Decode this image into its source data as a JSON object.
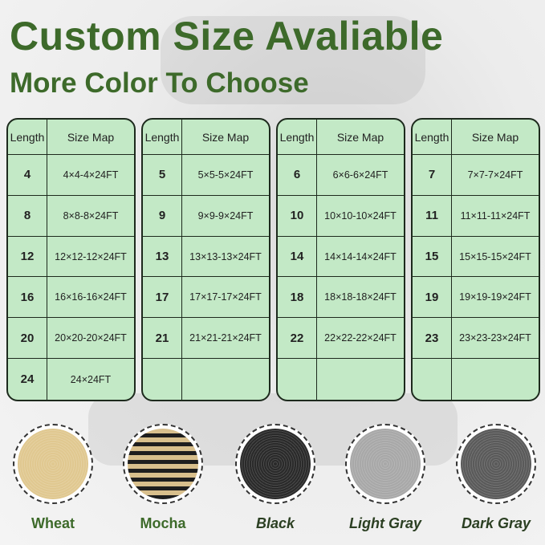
{
  "title": "Custom Size Avaliable",
  "subtitle": "More Color To Choose",
  "table_headers": {
    "length": "Length",
    "size_map": "Size Map"
  },
  "tables": [
    {
      "rows": [
        {
          "length": "4",
          "size": "4×4-4×24FT"
        },
        {
          "length": "8",
          "size": "8×8-8×24FT"
        },
        {
          "length": "12",
          "size": "12×12-12×24FT"
        },
        {
          "length": "16",
          "size": "16×16-16×24FT"
        },
        {
          "length": "20",
          "size": "20×20-20×24FT"
        },
        {
          "length": "24",
          "size": "24×24FT"
        }
      ]
    },
    {
      "rows": [
        {
          "length": "5",
          "size": "5×5-5×24FT"
        },
        {
          "length": "9",
          "size": "9×9-9×24FT"
        },
        {
          "length": "13",
          "size": "13×13-13×24FT"
        },
        {
          "length": "17",
          "size": "17×17-17×24FT"
        },
        {
          "length": "21",
          "size": "21×21-21×24FT"
        },
        {
          "length": "",
          "size": ""
        }
      ]
    },
    {
      "rows": [
        {
          "length": "6",
          "size": "6×6-6×24FT"
        },
        {
          "length": "10",
          "size": "10×10-10×24FT"
        },
        {
          "length": "14",
          "size": "14×14-14×24FT"
        },
        {
          "length": "18",
          "size": "18×18-18×24FT"
        },
        {
          "length": "22",
          "size": "22×22-22×24FT"
        },
        {
          "length": "",
          "size": ""
        }
      ]
    },
    {
      "rows": [
        {
          "length": "7",
          "size": "7×7-7×24FT"
        },
        {
          "length": "11",
          "size": "11×11-11×24FT"
        },
        {
          "length": "15",
          "size": "15×15-15×24FT"
        },
        {
          "length": "19",
          "size": "19×19-19×24FT"
        },
        {
          "length": "23",
          "size": "23×23-23×24FT"
        },
        {
          "length": "",
          "size": ""
        }
      ]
    }
  ],
  "colors": [
    {
      "name": "Wheat",
      "swatch": "#e0c890"
    },
    {
      "name": "Mocha",
      "swatch": "#8a7350"
    },
    {
      "name": "Black",
      "swatch": "#2a2a2a"
    },
    {
      "name": "Light Gray",
      "swatch": "#a8a8a8"
    },
    {
      "name": "Dark Gray",
      "swatch": "#5a5a5a"
    }
  ],
  "accent_color": "#3d6a2a",
  "table_color": "#c3e9c6"
}
